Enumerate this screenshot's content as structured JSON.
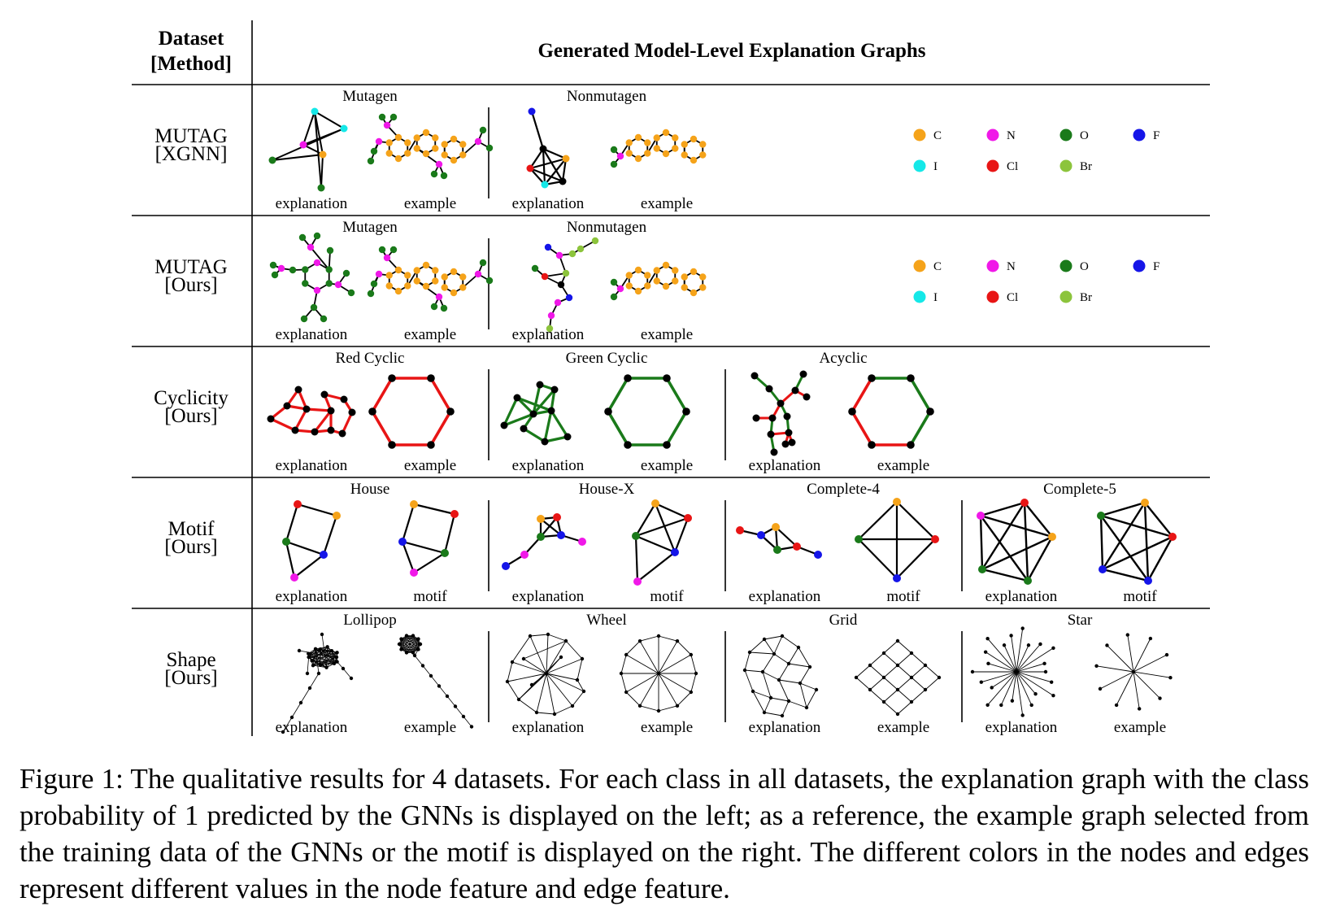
{
  "header": {
    "dataset_line1": "Dataset",
    "dataset_line2": "[Method]",
    "title": "Generated Model-Level Explanation Graphs"
  },
  "rows": [
    {
      "label1": "MUTAG",
      "label2": "[XGNN]",
      "groups": [
        {
          "title": "Mutagen",
          "left": "explanation",
          "right": "example"
        },
        {
          "title": "Nonmutagen",
          "left": "explanation",
          "right": "example"
        }
      ],
      "legend": [
        {
          "label": "C",
          "color": "#f5a31a"
        },
        {
          "label": "N",
          "color": "#f018e8"
        },
        {
          "label": "O",
          "color": "#1a7a1a"
        },
        {
          "label": "F",
          "color": "#1515e8"
        },
        {
          "label": "I",
          "color": "#15e8e8"
        },
        {
          "label": "Cl",
          "color": "#e81515"
        },
        {
          "label": "Br",
          "color": "#8cc43c"
        }
      ]
    },
    {
      "label1": "MUTAG",
      "label2": "[Ours]",
      "groups": [
        {
          "title": "Mutagen",
          "left": "explanation",
          "right": "example"
        },
        {
          "title": "Nonmutagen",
          "left": "explanation",
          "right": "example"
        }
      ],
      "legend": [
        {
          "label": "C",
          "color": "#f5a31a"
        },
        {
          "label": "N",
          "color": "#f018e8"
        },
        {
          "label": "O",
          "color": "#1a7a1a"
        },
        {
          "label": "F",
          "color": "#1515e8"
        },
        {
          "label": "I",
          "color": "#15e8e8"
        },
        {
          "label": "Cl",
          "color": "#e81515"
        },
        {
          "label": "Br",
          "color": "#8cc43c"
        }
      ]
    },
    {
      "label1": "Cyclicity",
      "label2": "[Ours]",
      "groups": [
        {
          "title": "Red Cyclic",
          "left": "explanation",
          "right": "example"
        },
        {
          "title": "Green Cyclic",
          "left": "explanation",
          "right": "example"
        },
        {
          "title": "Acyclic",
          "left": "explanation",
          "right": "example"
        }
      ]
    },
    {
      "label1": "Motif",
      "label2": "[Ours]",
      "groups": [
        {
          "title": "House",
          "left": "explanation",
          "right": "motif"
        },
        {
          "title": "House-X",
          "left": "explanation",
          "right": "motif"
        },
        {
          "title": "Complete-4",
          "left": "explanation",
          "right": "motif"
        },
        {
          "title": "Complete-5",
          "left": "explanation",
          "right": "motif"
        }
      ]
    },
    {
      "label1": "Shape",
      "label2": "[Ours]",
      "groups": [
        {
          "title": "Lollipop",
          "left": "explanation",
          "right": "example"
        },
        {
          "title": "Wheel",
          "left": "explanation",
          "right": "example"
        },
        {
          "title": "Grid",
          "left": "explanation",
          "right": "example"
        },
        {
          "title": "Star",
          "left": "explanation",
          "right": "example"
        }
      ]
    }
  ],
  "caption": "Figure 1: The qualitative results for 4 datasets. For each class in all datasets, the explanation graph with the class probability of 1 predicted by the GNNs is displayed on the left; as a reference, the example graph selected from the training data of the GNNs or the motif is displayed on the right. The different colors in the nodes and edges represent different values in the node feature and edge feature.",
  "colors": {
    "C": "#f5a31a",
    "N": "#f018e8",
    "O": "#1a7a1a",
    "F": "#1515e8",
    "I": "#15e8e8",
    "Cl": "#e81515",
    "Br": "#8cc43c",
    "red_edge": "#e81515",
    "green_edge": "#1a7a1a",
    "node_black": "#000000"
  }
}
